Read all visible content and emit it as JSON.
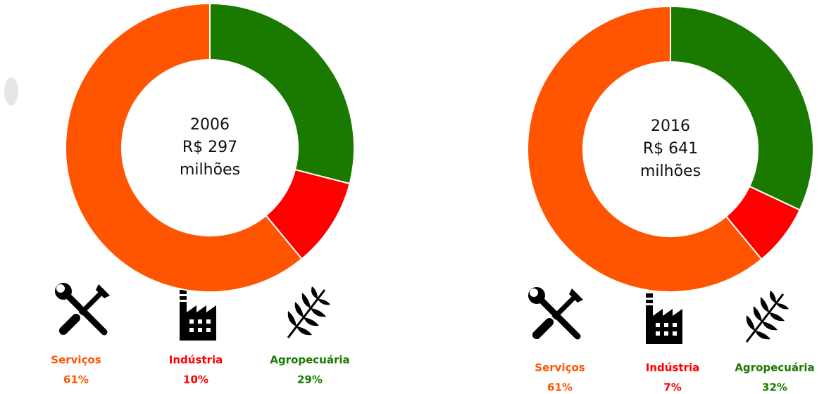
{
  "chart_data": [
    {
      "type": "pie",
      "center_label": [
        "2006",
        "R$ 297",
        "milhões"
      ],
      "categories": [
        "Serviços",
        "Indústria",
        "Agropecuária"
      ],
      "values": [
        61,
        10,
        29
      ],
      "value_labels": [
        "61%",
        "10%",
        "29%"
      ],
      "colors": [
        "#ff5500",
        "#ff0000",
        "#1a7a00"
      ]
    },
    {
      "type": "pie",
      "center_label": [
        "2016",
        "R$ 641",
        "milhões"
      ],
      "categories": [
        "Serviços",
        "Indústria",
        "Agropecuária"
      ],
      "values": [
        61,
        7,
        32
      ],
      "value_labels": [
        "61%",
        "7%",
        "32%"
      ],
      "colors": [
        "#ff5500",
        "#ff0000",
        "#1a7a00"
      ]
    }
  ]
}
